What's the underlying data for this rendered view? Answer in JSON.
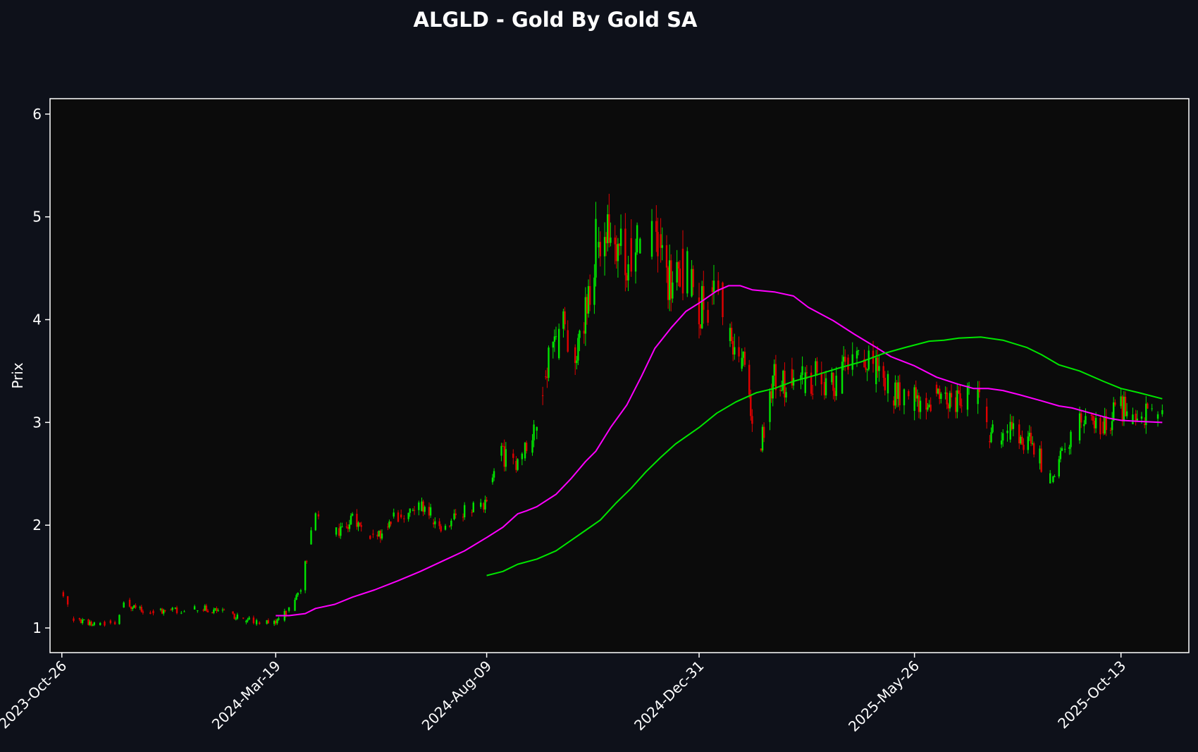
{
  "chart_data": {
    "type": "candlestick",
    "title": "ALGLD - Gold By Gold SA",
    "xlabel": "",
    "ylabel": "Prix",
    "ylim": [
      0.76,
      6.15
    ],
    "xlim": [
      "2023-10-18",
      "2025-11-28"
    ],
    "grid": false,
    "x_ticks": [
      "2023-Oct-26",
      "2024-Mar-19",
      "2024-Aug-09",
      "2024-Dec-31",
      "2025-May-26",
      "2025-Oct-13"
    ],
    "y_ticks": [
      1,
      2,
      3,
      4,
      5,
      6
    ],
    "colors": {
      "up": "#00e400",
      "down": "#e00000",
      "ma_short": "#ff00ff",
      "ma_long": "#00e600",
      "plot_bg": "#0b0b0b",
      "figure_bg": "#0e111a",
      "frame": "#ffffff",
      "text": "#ffffff"
    },
    "candle_anchors": [
      [
        "2023-10-26",
        1.34
      ],
      [
        "2023-11-02",
        1.1
      ],
      [
        "2023-11-15",
        1.04
      ],
      [
        "2023-12-01",
        1.05
      ],
      [
        "2023-12-08",
        1.25
      ],
      [
        "2023-12-20",
        1.16
      ],
      [
        "2024-01-10",
        1.17
      ],
      [
        "2024-01-25",
        1.2
      ],
      [
        "2024-02-10",
        1.16
      ],
      [
        "2024-02-25",
        1.09
      ],
      [
        "2024-03-10",
        1.05
      ],
      [
        "2024-03-19",
        1.06
      ],
      [
        "2024-03-28",
        1.17
      ],
      [
        "2024-04-05",
        1.4
      ],
      [
        "2024-04-15",
        2.1
      ],
      [
        "2024-04-28",
        1.9
      ],
      [
        "2024-05-10",
        2.05
      ],
      [
        "2024-05-25",
        1.88
      ],
      [
        "2024-06-10",
        2.1
      ],
      [
        "2024-06-25",
        2.2
      ],
      [
        "2024-07-10",
        2.0
      ],
      [
        "2024-07-25",
        2.15
      ],
      [
        "2024-08-09",
        2.25
      ],
      [
        "2024-08-18",
        2.7
      ],
      [
        "2024-08-30",
        2.55
      ],
      [
        "2024-09-10",
        2.95
      ],
      [
        "2024-09-20",
        3.6
      ],
      [
        "2024-10-01",
        3.95
      ],
      [
        "2024-10-10",
        3.7
      ],
      [
        "2024-10-22",
        4.7
      ],
      [
        "2024-11-01",
        4.95
      ],
      [
        "2024-11-12",
        4.6
      ],
      [
        "2024-11-22",
        4.9
      ],
      [
        "2024-12-01",
        4.8
      ],
      [
        "2024-12-12",
        4.3
      ],
      [
        "2024-12-22",
        4.55
      ],
      [
        "2025-01-01",
        4.1
      ],
      [
        "2025-01-12",
        4.3
      ],
      [
        "2025-01-22",
        3.9
      ],
      [
        "2025-02-01",
        3.5
      ],
      [
        "2025-02-08",
        2.6
      ],
      [
        "2025-02-20",
        3.45
      ],
      [
        "2025-03-05",
        3.35
      ],
      [
        "2025-03-20",
        3.45
      ],
      [
        "2025-04-05",
        3.4
      ],
      [
        "2025-04-15",
        3.7
      ],
      [
        "2025-04-25",
        3.55
      ],
      [
        "2025-05-10",
        3.3
      ],
      [
        "2025-05-26",
        3.25
      ],
      [
        "2025-06-10",
        3.22
      ],
      [
        "2025-06-25",
        3.25
      ],
      [
        "2025-07-10",
        3.2
      ],
      [
        "2025-07-15",
        2.85
      ],
      [
        "2025-07-30",
        2.92
      ],
      [
        "2025-08-15",
        2.8
      ],
      [
        "2025-08-25",
        2.45
      ],
      [
        "2025-09-05",
        2.75
      ],
      [
        "2025-09-15",
        3.0
      ],
      [
        "2025-09-25",
        2.92
      ],
      [
        "2025-10-05",
        3.0
      ],
      [
        "2025-10-13",
        3.15
      ],
      [
        "2025-10-25",
        3.1
      ],
      [
        "2025-11-10",
        3.05
      ]
    ],
    "series": [
      {
        "type": "line",
        "values": [
          [
            "2024-03-19",
            1.12
          ],
          [
            "2024-03-28",
            1.12
          ],
          [
            "2024-04-08",
            1.14
          ],
          [
            "2024-04-15",
            1.19
          ],
          [
            "2024-04-28",
            1.23
          ],
          [
            "2024-05-10",
            1.3
          ],
          [
            "2024-05-25",
            1.37
          ],
          [
            "2024-06-10",
            1.46
          ],
          [
            "2024-06-25",
            1.55
          ],
          [
            "2024-07-10",
            1.65
          ],
          [
            "2024-07-25",
            1.75
          ],
          [
            "2024-08-09",
            1.88
          ],
          [
            "2024-08-20",
            1.98
          ],
          [
            "2024-08-30",
            2.11
          ],
          [
            "2024-09-05",
            2.14
          ],
          [
            "2024-09-12",
            2.18
          ],
          [
            "2024-09-25",
            2.3
          ],
          [
            "2024-10-05",
            2.45
          ],
          [
            "2024-10-15",
            2.62
          ],
          [
            "2024-10-22",
            2.72
          ],
          [
            "2024-11-01",
            2.95
          ],
          [
            "2024-11-12",
            3.17
          ],
          [
            "2024-11-22",
            3.45
          ],
          [
            "2024-12-01",
            3.72
          ],
          [
            "2024-12-12",
            3.92
          ],
          [
            "2024-12-22",
            4.08
          ],
          [
            "2025-01-01",
            4.17
          ],
          [
            "2025-01-12",
            4.28
          ],
          [
            "2025-01-20",
            4.33
          ],
          [
            "2025-01-28",
            4.33
          ],
          [
            "2025-02-05",
            4.29
          ],
          [
            "2025-02-20",
            4.27
          ],
          [
            "2025-03-05",
            4.23
          ],
          [
            "2025-03-15",
            4.12
          ],
          [
            "2025-04-01",
            3.99
          ],
          [
            "2025-04-15",
            3.86
          ],
          [
            "2025-04-30",
            3.73
          ],
          [
            "2025-05-10",
            3.64
          ],
          [
            "2025-05-26",
            3.55
          ],
          [
            "2025-06-10",
            3.44
          ],
          [
            "2025-06-25",
            3.37
          ],
          [
            "2025-07-05",
            3.33
          ],
          [
            "2025-07-15",
            3.33
          ],
          [
            "2025-07-25",
            3.31
          ],
          [
            "2025-08-05",
            3.27
          ],
          [
            "2025-08-20",
            3.21
          ],
          [
            "2025-09-01",
            3.16
          ],
          [
            "2025-09-10",
            3.14
          ],
          [
            "2025-09-25",
            3.08
          ],
          [
            "2025-10-05",
            3.04
          ],
          [
            "2025-10-13",
            3.02
          ],
          [
            "2025-10-25",
            3.01
          ],
          [
            "2025-11-10",
            3.0
          ]
        ]
      },
      {
        "type": "line",
        "values": [
          [
            "2024-08-09",
            1.51
          ],
          [
            "2024-08-20",
            1.55
          ],
          [
            "2024-08-30",
            1.62
          ],
          [
            "2024-09-12",
            1.67
          ],
          [
            "2024-09-25",
            1.75
          ],
          [
            "2024-10-05",
            1.85
          ],
          [
            "2024-10-15",
            1.95
          ],
          [
            "2024-10-25",
            2.05
          ],
          [
            "2024-11-05",
            2.22
          ],
          [
            "2024-11-15",
            2.36
          ],
          [
            "2024-11-25",
            2.52
          ],
          [
            "2024-12-05",
            2.66
          ],
          [
            "2024-12-15",
            2.79
          ],
          [
            "2024-12-31",
            2.95
          ],
          [
            "2025-01-12",
            3.09
          ],
          [
            "2025-01-25",
            3.2
          ],
          [
            "2025-02-08",
            3.29
          ],
          [
            "2025-02-20",
            3.33
          ],
          [
            "2025-03-05",
            3.4
          ],
          [
            "2025-03-20",
            3.46
          ],
          [
            "2025-04-05",
            3.53
          ],
          [
            "2025-04-20",
            3.59
          ],
          [
            "2025-05-05",
            3.67
          ],
          [
            "2025-05-20",
            3.73
          ],
          [
            "2025-06-05",
            3.79
          ],
          [
            "2025-06-15",
            3.8
          ],
          [
            "2025-06-25",
            3.82
          ],
          [
            "2025-07-10",
            3.83
          ],
          [
            "2025-07-25",
            3.8
          ],
          [
            "2025-08-10",
            3.73
          ],
          [
            "2025-08-20",
            3.66
          ],
          [
            "2025-09-01",
            3.56
          ],
          [
            "2025-09-15",
            3.5
          ],
          [
            "2025-10-01",
            3.4
          ],
          [
            "2025-10-13",
            3.33
          ],
          [
            "2025-10-25",
            3.29
          ],
          [
            "2025-11-10",
            3.23
          ]
        ]
      }
    ]
  }
}
